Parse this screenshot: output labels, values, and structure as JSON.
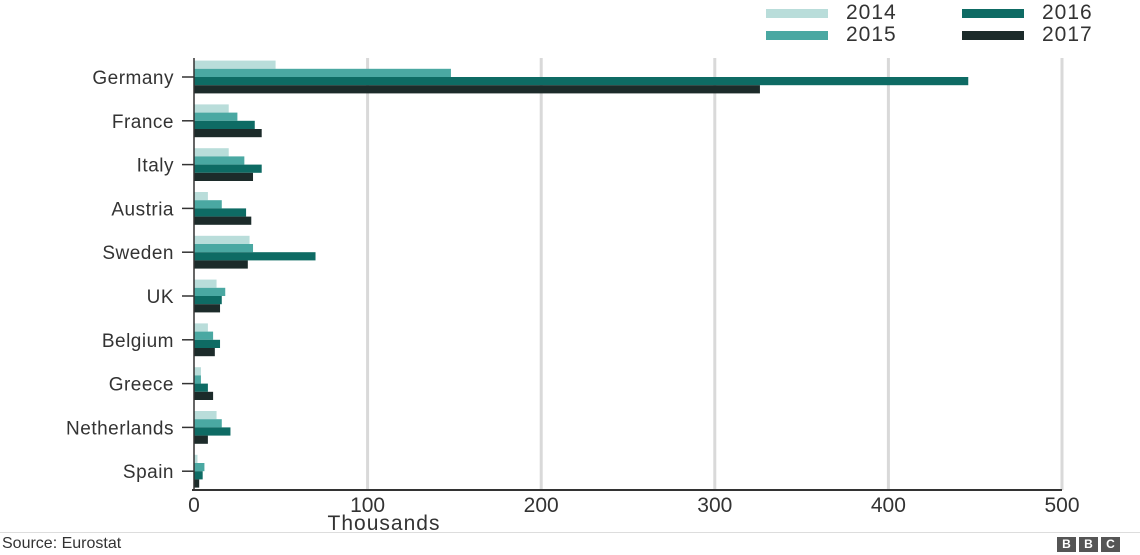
{
  "chart_data": {
    "type": "bar",
    "orientation": "horizontal",
    "categories": [
      "Germany",
      "France",
      "Italy",
      "Austria",
      "Sweden",
      "UK",
      "Belgium",
      "Greece",
      "Netherlands",
      "Spain"
    ],
    "series": [
      {
        "name": "2014",
        "color": "#b9ddda",
        "values": [
          47,
          20,
          20,
          8,
          32,
          13,
          8,
          4,
          13,
          2
        ]
      },
      {
        "name": "2015",
        "color": "#4aa8a2",
        "values": [
          148,
          25,
          29,
          16,
          34,
          18,
          11,
          4,
          16,
          6
        ]
      },
      {
        "name": "2016",
        "color": "#0e6b64",
        "values": [
          446,
          35,
          39,
          30,
          70,
          16,
          15,
          8,
          21,
          5
        ]
      },
      {
        "name": "2017",
        "color": "#1c2b2a",
        "values": [
          326,
          39,
          34,
          33,
          31,
          15,
          12,
          11,
          8,
          3
        ]
      }
    ],
    "xlabel": "Thousands",
    "xlim": [
      0,
      500
    ],
    "xticks": [
      0,
      100,
      200,
      300,
      400,
      500
    ],
    "grid": "vertical",
    "legend_position": "top-right"
  },
  "footer": {
    "source": "Source: Eurostat",
    "logo_letters": [
      "B",
      "B",
      "C"
    ]
  }
}
